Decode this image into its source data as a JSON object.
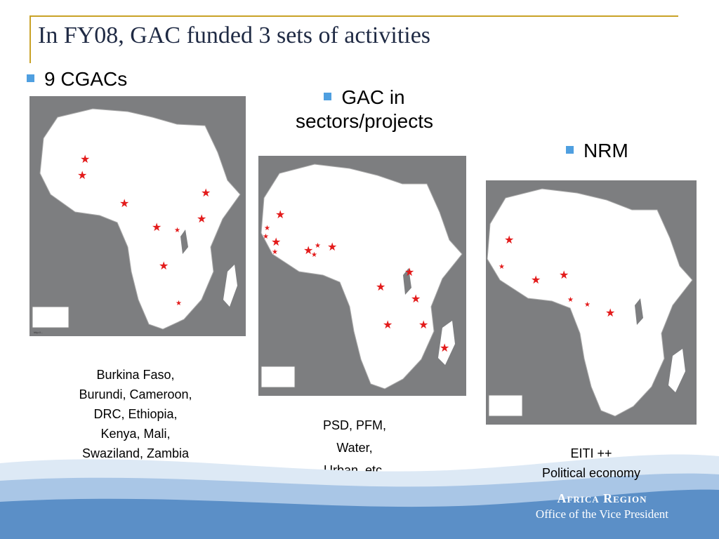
{
  "slide": {
    "title": "In FY08, GAC funded 3 sets of activities"
  },
  "bullets": [
    {
      "label": "9 CGACs"
    },
    {
      "label_line1": "GAC in",
      "label_line2": "sectors/projects"
    },
    {
      "label": "NRM"
    }
  ],
  "captions": {
    "cgacs": [
      "Burkina Faso,",
      "Burundi, Cameroon,",
      "DRC, Ethiopia,",
      "Kenya, Mali,",
      "Swaziland, Zambia"
    ],
    "sectors": [
      "PSD, PFM,",
      "Water,",
      "Urban, etc."
    ],
    "nrm": [
      "EITI ++",
      "Political economy"
    ]
  },
  "branding": {
    "name": "Africa Region",
    "subtitle": "Office of the Vice President"
  },
  "colors": {
    "accent_bullet": "#4f9fe0",
    "title_rule": "#c9a227",
    "marker": "#e31b1b",
    "map_background": "#7d7e80",
    "land": "#ffffff",
    "footer_wave": "#5b8fc7"
  },
  "icons": {
    "marker": "red-star-icon",
    "bullet": "blue-square-bullet-icon"
  }
}
